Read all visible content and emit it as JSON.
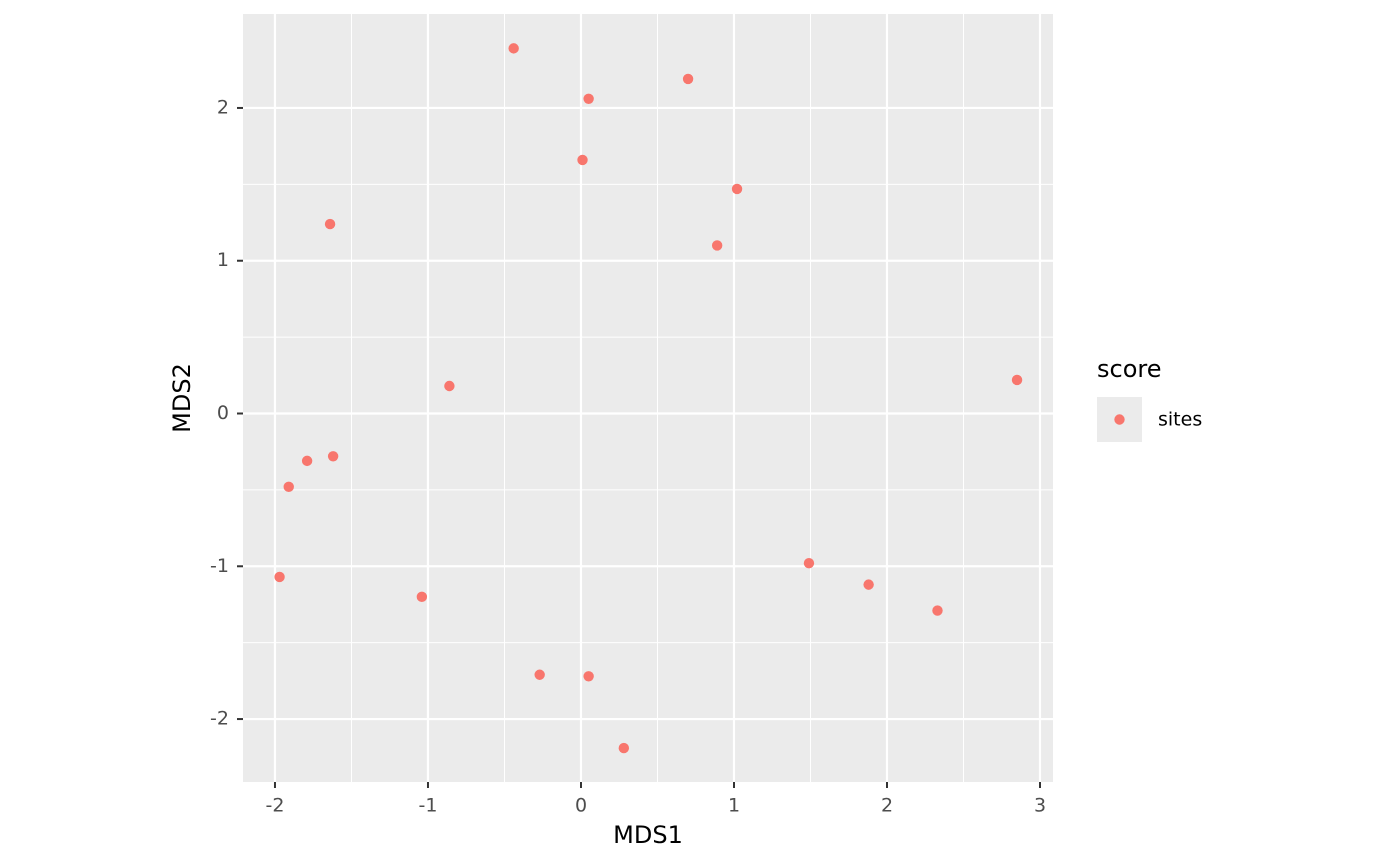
{
  "chart_data": {
    "type": "scatter",
    "x_label": "MDS1",
    "y_label": "MDS2",
    "legend_title": "score",
    "series": [
      {
        "name": "sites",
        "color": "#F8766D",
        "x": [
          -0.44,
          0.7,
          0.05,
          0.01,
          1.02,
          0.89,
          -1.64,
          -0.86,
          2.85,
          -1.62,
          -1.79,
          -1.91,
          -1.97,
          -1.04,
          1.49,
          1.88,
          2.33,
          -0.27,
          0.05,
          0.28
        ],
        "values": [
          2.39,
          2.19,
          2.06,
          1.66,
          1.47,
          1.1,
          1.24,
          0.18,
          0.22,
          -0.28,
          -0.31,
          -0.48,
          -1.07,
          -1.2,
          -0.98,
          -1.12,
          -1.29,
          -1.71,
          -1.72,
          -2.19
        ]
      }
    ],
    "xlim": [
      -2.209,
      3.085
    ],
    "ylim": [
      -2.412,
      2.615
    ],
    "xticks": [
      -2,
      -1,
      0,
      1,
      2,
      3
    ],
    "yticks": [
      -2,
      -1,
      0,
      1,
      2
    ],
    "grid": true,
    "legend": "right"
  }
}
